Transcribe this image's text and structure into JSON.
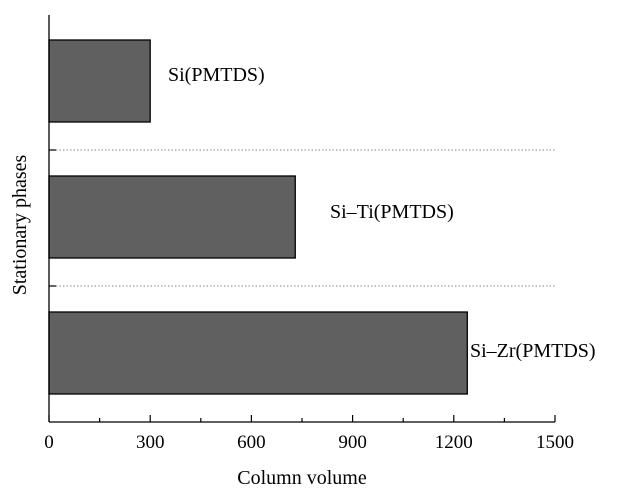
{
  "chart_data": {
    "type": "bar",
    "orientation": "horizontal",
    "categories": [
      "Si(PMTDS)",
      "Si–Ti(PMTDS)",
      "Si–Zr(PMTDS)"
    ],
    "values": [
      300,
      730,
      1240
    ],
    "xlabel": "Column volume",
    "ylabel": "Stationary phases",
    "xlim": [
      0,
      1500
    ],
    "x_ticks": [
      0,
      300,
      600,
      900,
      1200,
      1500
    ],
    "x_minor_tick_step": 150,
    "grid": "dotted separators between categories",
    "legend": "none",
    "bar_color": "#606060",
    "bar_edge_color": "#000000",
    "separator_color": "#888888"
  }
}
